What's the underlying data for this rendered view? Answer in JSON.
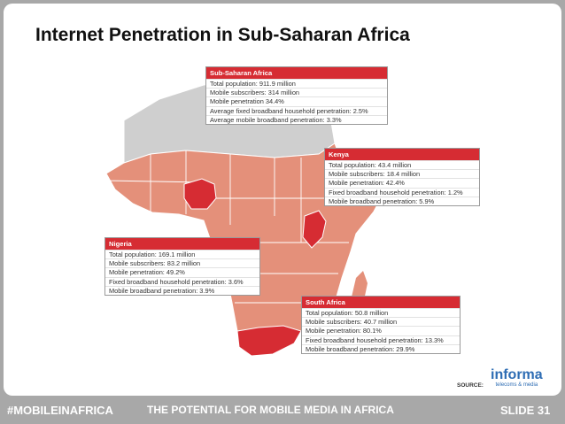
{
  "title": "Internet Penetration in Sub-Saharan Africa",
  "colors": {
    "region": "#e4907a",
    "highlight": "#d62c33",
    "grey": "#cfcfcf",
    "header": "#d62c33"
  },
  "boxes": {
    "ssa": {
      "header": "Sub-Saharan Africa",
      "rows": [
        "Total population: 911.9 million",
        "Mobile subscribers: 314 million",
        "Mobile penetration 34.4%",
        "Average fixed broadband household penetration: 2.5%",
        "Average mobile broadband penetration: 3.3%"
      ]
    },
    "kenya": {
      "header": "Kenya",
      "rows": [
        "Total population: 43.4  million",
        "Mobile subscribers: 18.4 million",
        "Mobile penetration: 42.4%",
        "Fixed broadband household penetration: 1.2%",
        "Mobile broadband penetration: 5.9%"
      ]
    },
    "nigeria": {
      "header": "Nigeria",
      "rows": [
        "Total population: 169.1 million",
        "Mobile subscribers: 83.2 million",
        "Mobile penetration: 49.2%",
        "Fixed broadband household penetration: 3.6%",
        "Mobile broadband penetration: 3.9%"
      ]
    },
    "southafrica": {
      "header": "South Africa",
      "rows": [
        "Total population: 50.8 million",
        "Mobile subscribers: 40.7 million",
        "Mobile penetration: 80.1%",
        "Fixed broadband household penetration: 13.3%",
        "Mobile broadband penetration: 29.9%"
      ]
    }
  },
  "source": {
    "label": "SOURCE:",
    "logo_name": "informa",
    "logo_tagline": "telecoms & media"
  },
  "footer": {
    "left": "#MOBILEINAFRICA",
    "middle": "THE POTENTIAL FOR MOBILE MEDIA IN AFRICA",
    "right": "SLIDE 31"
  }
}
